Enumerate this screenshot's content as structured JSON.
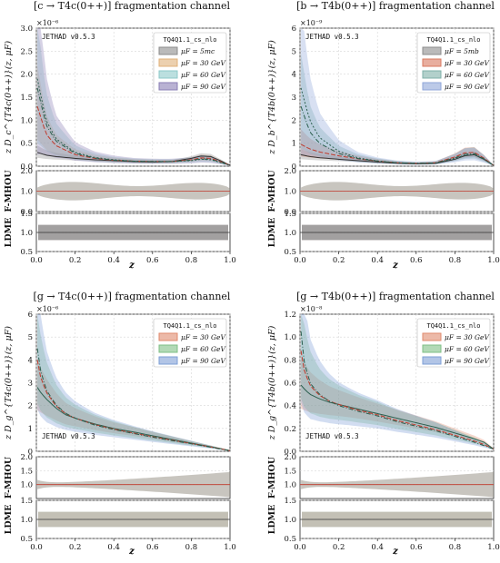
{
  "chart_data": [
    {
      "type": "line",
      "title": "[c → T4c(0++)] fragmentation channel",
      "ylabel": "z D_c^{T4c(0++)}(z, μF)",
      "xlabel": "z",
      "y_exponent": "×10⁻⁶",
      "watermark": "JETHAD v0.5.3",
      "legend_title": "TQ4Q1.1_cs_nlo",
      "legend_position": "top-right",
      "ylim": [
        0,
        3.0
      ],
      "yticks": [
        "0.0",
        "0.5",
        "1.0",
        "1.5",
        "2.0",
        "2.5",
        "3.0"
      ],
      "xticks": [
        "0.0",
        "0.2",
        "0.4",
        "0.6",
        "0.8",
        "1.0"
      ],
      "series": [
        {
          "name": "μF = 5mc",
          "color": "#8c8c8c",
          "x": [
            0.005,
            0.05,
            0.1,
            0.2,
            0.3,
            0.4,
            0.5,
            0.6,
            0.7,
            0.8,
            0.85,
            0.9,
            0.95,
            1.0
          ],
          "values": [
            0.3,
            0.24,
            0.21,
            0.17,
            0.14,
            0.12,
            0.1,
            0.09,
            0.1,
            0.17,
            0.22,
            0.21,
            0.12,
            0.02
          ]
        },
        {
          "name": "μF = 30 GeV",
          "color": "#e0b07a",
          "x": [
            0.005,
            0.05,
            0.1,
            0.2,
            0.3,
            0.4,
            0.5,
            0.6,
            0.7,
            0.8,
            0.85,
            0.9,
            0.95,
            1.0
          ],
          "values": [
            1.3,
            0.7,
            0.45,
            0.25,
            0.17,
            0.13,
            0.11,
            0.1,
            0.1,
            0.14,
            0.18,
            0.17,
            0.1,
            0.02
          ]
        },
        {
          "name": "μF = 60 GeV",
          "color": "#8ec9c9",
          "x": [
            0.005,
            0.05,
            0.1,
            0.2,
            0.3,
            0.4,
            0.5,
            0.6,
            0.7,
            0.8,
            0.85,
            0.9,
            0.95,
            1.0
          ],
          "values": [
            1.7,
            0.9,
            0.55,
            0.28,
            0.18,
            0.13,
            0.11,
            0.1,
            0.1,
            0.13,
            0.16,
            0.15,
            0.09,
            0.02
          ]
        },
        {
          "name": "μF = 90 GeV",
          "color": "#8a7fb5",
          "x": [
            0.005,
            0.05,
            0.1,
            0.2,
            0.3,
            0.4,
            0.5,
            0.6,
            0.7,
            0.8,
            0.85,
            0.9,
            0.95,
            1.0
          ],
          "values": [
            1.9,
            1.0,
            0.6,
            0.3,
            0.19,
            0.14,
            0.11,
            0.1,
            0.1,
            0.12,
            0.15,
            0.14,
            0.08,
            0.02
          ]
        }
      ],
      "mhou_panel": {
        "ylabel": "F-MHOU",
        "ylim": [
          0,
          2.0
        ],
        "yticks": [
          "0.0",
          "1.0",
          "2.0"
        ]
      },
      "ldme_panel": {
        "ylabel": "LDME",
        "ylim": [
          0.5,
          1.5
        ],
        "yticks": [
          "0.5",
          "1.0",
          "1.5"
        ]
      }
    },
    {
      "type": "line",
      "title": "[b → T4b(0++)] fragmentation channel",
      "ylabel": "z D_b^{T4b(0++)}(z, μF)",
      "xlabel": "z",
      "y_exponent": "×10⁻⁹",
      "watermark": "JETHAD v0.5.3",
      "legend_title": "TQ4Q1.1_cs_nlo",
      "legend_position": "top-right",
      "ylim": [
        0,
        6
      ],
      "yticks": [
        "0",
        "1",
        "2",
        "3",
        "4",
        "5",
        "6"
      ],
      "xticks": [
        "0.0",
        "0.2",
        "0.4",
        "0.6",
        "0.8",
        "1.0"
      ],
      "series": [
        {
          "name": "μF = 5mb",
          "color": "#8c8c8c",
          "x": [
            0.005,
            0.05,
            0.1,
            0.2,
            0.3,
            0.4,
            0.5,
            0.6,
            0.7,
            0.8,
            0.85,
            0.9,
            0.95,
            1.0
          ],
          "values": [
            0.5,
            0.42,
            0.37,
            0.3,
            0.24,
            0.18,
            0.13,
            0.1,
            0.12,
            0.3,
            0.45,
            0.5,
            0.3,
            0.03
          ]
        },
        {
          "name": "μF = 30 GeV",
          "color": "#d9785f",
          "x": [
            0.005,
            0.05,
            0.1,
            0.2,
            0.3,
            0.4,
            0.5,
            0.6,
            0.7,
            0.8,
            0.85,
            0.9,
            0.95,
            1.0
          ],
          "values": [
            0.95,
            0.75,
            0.62,
            0.45,
            0.32,
            0.22,
            0.15,
            0.12,
            0.15,
            0.4,
            0.58,
            0.6,
            0.35,
            0.03
          ]
        },
        {
          "name": "μF = 60 GeV",
          "color": "#7fb0a8",
          "x": [
            0.005,
            0.05,
            0.1,
            0.2,
            0.3,
            0.4,
            0.5,
            0.6,
            0.7,
            0.8,
            0.85,
            0.9,
            0.95,
            1.0
          ],
          "values": [
            2.6,
            1.5,
            1.0,
            0.55,
            0.33,
            0.22,
            0.15,
            0.12,
            0.14,
            0.36,
            0.52,
            0.55,
            0.32,
            0.03
          ]
        },
        {
          "name": "μF = 90 GeV",
          "color": "#8fa6d9",
          "x": [
            0.005,
            0.05,
            0.1,
            0.2,
            0.3,
            0.4,
            0.5,
            0.6,
            0.7,
            0.8,
            0.85,
            0.9,
            0.95,
            1.0
          ],
          "values": [
            3.4,
            2.0,
            1.25,
            0.65,
            0.36,
            0.23,
            0.15,
            0.12,
            0.14,
            0.33,
            0.48,
            0.5,
            0.3,
            0.03
          ]
        }
      ],
      "mhou_panel": {
        "ylabel": "F-MHOU",
        "ylim": [
          0,
          2.0
        ],
        "yticks": [
          "0.0",
          "1.0",
          "2.0"
        ]
      },
      "ldme_panel": {
        "ylabel": "LDME",
        "ylim": [
          0.5,
          1.5
        ],
        "yticks": [
          "0.5",
          "1.0",
          "1.5"
        ]
      }
    },
    {
      "type": "line",
      "title": "[g → T4c(0++)] fragmentation channel",
      "ylabel": "z D_g^{T4c(0++)}(z, μF)",
      "xlabel": "z",
      "y_exponent": "×10⁻⁶",
      "watermark": "JETHAD v0.5.3",
      "legend_title": "TQ4Q1.1_cs_nlo",
      "legend_position": "top-right",
      "ylim": [
        0,
        6
      ],
      "yticks": [
        "0",
        "1",
        "2",
        "3",
        "4",
        "5",
        "6"
      ],
      "xticks": [
        "0.0",
        "0.2",
        "0.4",
        "0.6",
        "0.8",
        "1.0"
      ],
      "series": [
        {
          "name": "μF = 30 GeV",
          "color": "#e08a6e",
          "x": [
            0.005,
            0.02,
            0.05,
            0.1,
            0.15,
            0.2,
            0.3,
            0.4,
            0.5,
            0.6,
            0.7,
            0.8,
            0.9,
            0.95,
            1.0
          ],
          "values": [
            2.8,
            2.6,
            2.3,
            1.9,
            1.6,
            1.45,
            1.2,
            1.0,
            0.85,
            0.68,
            0.52,
            0.36,
            0.2,
            0.12,
            0.03
          ]
        },
        {
          "name": "μF = 60 GeV",
          "color": "#7fbf86",
          "x": [
            0.005,
            0.02,
            0.05,
            0.1,
            0.15,
            0.2,
            0.3,
            0.4,
            0.5,
            0.6,
            0.7,
            0.8,
            0.9,
            0.95,
            1.0
          ],
          "values": [
            4.0,
            3.3,
            2.6,
            2.0,
            1.65,
            1.45,
            1.17,
            0.97,
            0.8,
            0.64,
            0.49,
            0.34,
            0.19,
            0.11,
            0.03
          ]
        },
        {
          "name": "μF = 90 GeV",
          "color": "#7e9fd6",
          "x": [
            0.005,
            0.02,
            0.05,
            0.1,
            0.15,
            0.2,
            0.3,
            0.4,
            0.5,
            0.6,
            0.7,
            0.8,
            0.9,
            0.95,
            1.0
          ],
          "values": [
            4.5,
            3.6,
            2.7,
            2.05,
            1.67,
            1.45,
            1.15,
            0.95,
            0.78,
            0.62,
            0.47,
            0.33,
            0.18,
            0.1,
            0.03
          ]
        }
      ],
      "mhou_panel": {
        "ylabel": "F-MHOU",
        "ylim": [
          0.5,
          2.0
        ],
        "yticks": [
          "1.0",
          "1.5",
          "2.0"
        ]
      },
      "ldme_panel": {
        "ylabel": "LDME",
        "ylim": [
          0.5,
          1.5
        ],
        "yticks": [
          "0.5",
          "1.0",
          "1.5"
        ]
      }
    },
    {
      "type": "line",
      "title": "[g → T4b(0++)] fragmentation channel",
      "ylabel": "z D_g^{T4b(0++)}(z, μF)",
      "xlabel": "z",
      "y_exponent": "×10⁻⁸",
      "watermark": "JETHAD v0.5.3",
      "legend_title": "TQ4Q1.1_cs_nlo",
      "legend_position": "top-right",
      "ylim": [
        0,
        1.2
      ],
      "yticks": [
        "0.0",
        "0.2",
        "0.4",
        "0.6",
        "0.8",
        "1.0",
        "1.2"
      ],
      "xticks": [
        "0.0",
        "0.2",
        "0.4",
        "0.6",
        "0.8",
        "1.0"
      ],
      "series": [
        {
          "name": "μF = 30 GeV",
          "color": "#e08a6e",
          "x": [
            0.005,
            0.02,
            0.05,
            0.1,
            0.15,
            0.2,
            0.3,
            0.4,
            0.5,
            0.6,
            0.7,
            0.8,
            0.9,
            0.95,
            1.0
          ],
          "values": [
            0.58,
            0.55,
            0.5,
            0.46,
            0.43,
            0.41,
            0.37,
            0.33,
            0.29,
            0.25,
            0.21,
            0.16,
            0.11,
            0.08,
            0.02
          ]
        },
        {
          "name": "μF = 60 GeV",
          "color": "#7fbf86",
          "x": [
            0.005,
            0.02,
            0.05,
            0.1,
            0.15,
            0.2,
            0.3,
            0.4,
            0.5,
            0.6,
            0.7,
            0.8,
            0.9,
            0.95,
            1.0
          ],
          "values": [
            0.88,
            0.72,
            0.58,
            0.49,
            0.44,
            0.41,
            0.36,
            0.32,
            0.27,
            0.23,
            0.19,
            0.14,
            0.09,
            0.06,
            0.02
          ]
        },
        {
          "name": "μF = 90 GeV",
          "color": "#7e9fd6",
          "x": [
            0.005,
            0.02,
            0.05,
            0.1,
            0.15,
            0.2,
            0.3,
            0.4,
            0.5,
            0.6,
            0.7,
            0.8,
            0.9,
            0.95,
            1.0
          ],
          "values": [
            1.05,
            0.8,
            0.6,
            0.5,
            0.44,
            0.4,
            0.35,
            0.31,
            0.26,
            0.22,
            0.18,
            0.13,
            0.08,
            0.05,
            0.02
          ]
        }
      ],
      "mhou_panel": {
        "ylabel": "F-MHOU",
        "ylim": [
          0.5,
          2.0
        ],
        "yticks": [
          "1.0",
          "1.5",
          "2.0"
        ]
      },
      "ldme_panel": {
        "ylabel": "LDME",
        "ylim": [
          0.5,
          1.5
        ],
        "yticks": [
          "0.5",
          "1.0",
          "1.5"
        ]
      }
    }
  ]
}
